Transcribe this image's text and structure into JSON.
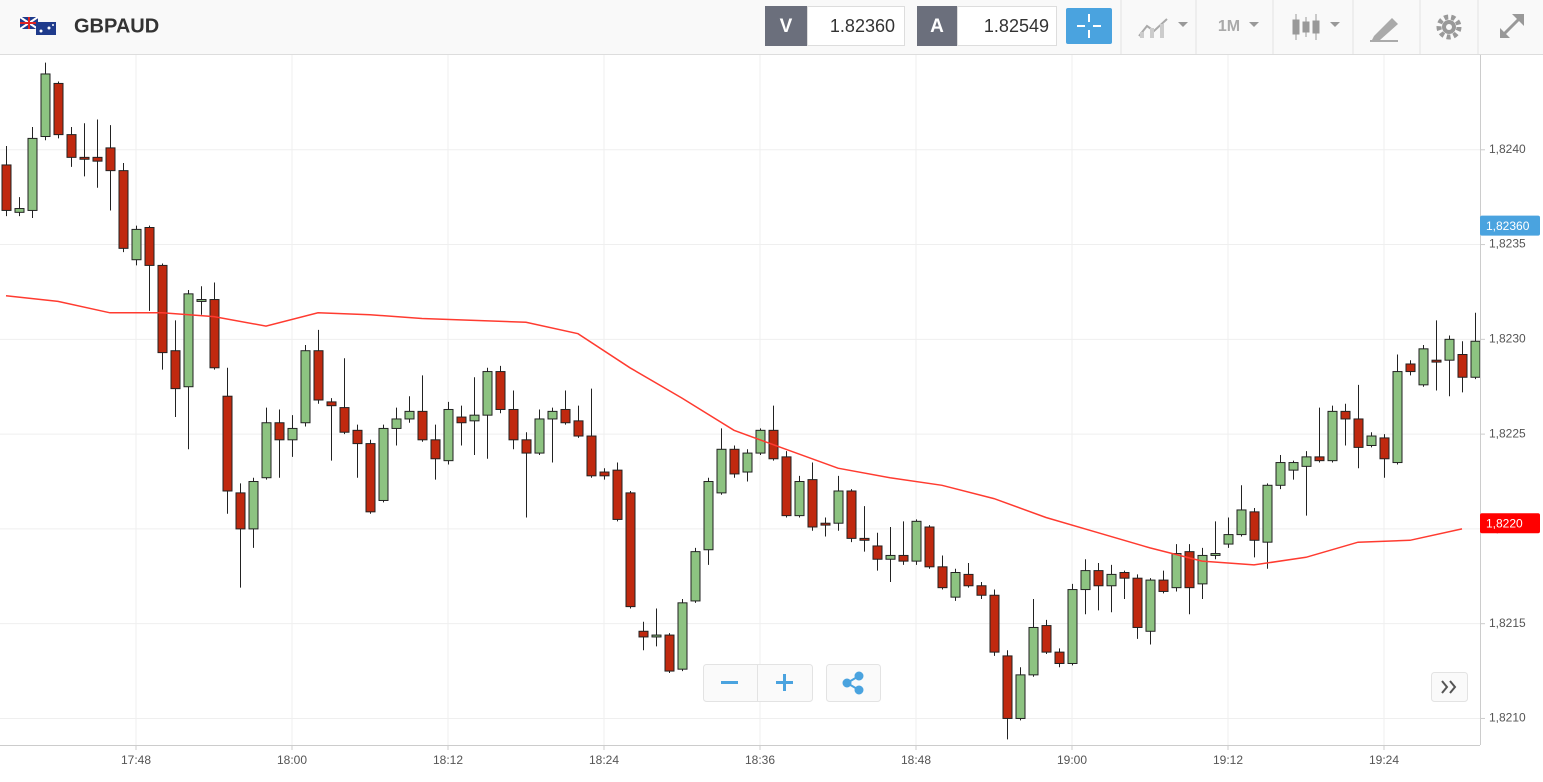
{
  "header": {
    "symbol": "GBPAUD",
    "bid_label": "V",
    "bid": "1.82360",
    "ask_label": "A",
    "ask": "1.82549",
    "timeframe": "1M"
  },
  "chart_data": {
    "type": "candlestick",
    "up_color": "#8dc381",
    "down_color": "#c0290f",
    "grid": true,
    "x": [
      "17:38",
      "17:39",
      "17:40",
      "17:41",
      "17:42",
      "17:43",
      "17:44",
      "17:45",
      "17:46",
      "17:47",
      "17:48",
      "17:49",
      "17:50",
      "17:51",
      "17:52",
      "17:53",
      "17:54",
      "17:55",
      "17:56",
      "17:57",
      "17:58",
      "17:59",
      "18:00",
      "18:01",
      "18:02",
      "18:03",
      "18:04",
      "18:05",
      "18:06",
      "18:07",
      "18:08",
      "18:09",
      "18:10",
      "18:11",
      "18:12",
      "18:13",
      "18:14",
      "18:15",
      "18:16",
      "18:17",
      "18:18",
      "18:19",
      "18:20",
      "18:21",
      "18:22",
      "18:23",
      "18:24",
      "18:25",
      "18:26",
      "18:27",
      "18:28",
      "18:29",
      "18:30",
      "18:31",
      "18:32",
      "18:33",
      "18:34",
      "18:35",
      "18:36",
      "18:37",
      "18:38",
      "18:39",
      "18:40",
      "18:41",
      "18:42",
      "18:43",
      "18:44",
      "18:45",
      "18:46",
      "18:47",
      "18:48",
      "18:49",
      "18:50",
      "18:51",
      "18:52",
      "18:53",
      "18:54",
      "18:55",
      "18:56",
      "18:57",
      "18:58",
      "18:59",
      "19:00",
      "19:01",
      "19:02",
      "19:03",
      "19:04",
      "19:05",
      "19:06",
      "19:07",
      "19:08",
      "19:09",
      "19:10",
      "19:11",
      "19:12",
      "19:13",
      "19:14",
      "19:15",
      "19:16",
      "19:17",
      "19:18",
      "19:19",
      "19:20",
      "19:21",
      "19:22",
      "19:23",
      "19:24",
      "19:25",
      "19:26",
      "19:27",
      "19:28",
      "19:29",
      "19:30",
      "19:31"
    ],
    "open": [
      1.82392,
      1.82367,
      1.82368,
      1.82407,
      1.82435,
      1.82408,
      1.82396,
      1.82396,
      1.82401,
      1.82389,
      1.82342,
      1.82359,
      1.82339,
      1.82294,
      1.82275,
      1.8232,
      1.82321,
      1.8227,
      1.82219,
      1.822,
      1.82227,
      1.82256,
      1.82247,
      1.82256,
      1.82294,
      1.82267,
      1.82264,
      1.82252,
      1.82245,
      1.82215,
      1.82253,
      1.82258,
      1.82262,
      1.82247,
      1.82236,
      1.82259,
      1.82257,
      1.8226,
      1.82283,
      1.82263,
      1.82247,
      1.8224,
      1.82258,
      1.82263,
      1.82257,
      1.82249,
      1.8223,
      1.82231,
      1.82219,
      1.82146,
      1.82143,
      1.82144,
      1.82126,
      1.82162,
      1.82189,
      1.82219,
      1.82242,
      1.8223,
      1.8224,
      1.82252,
      1.82238,
      1.82207,
      1.82226,
      1.82203,
      1.82203,
      1.8222,
      1.82195,
      1.82191,
      1.82184,
      1.82186,
      1.82183,
      1.82201,
      1.8218,
      1.82164,
      1.82176,
      1.8217,
      1.82165,
      1.82133,
      1.821,
      1.82123,
      1.82149,
      1.82135,
      1.82129,
      1.82168,
      1.82178,
      1.8217,
      1.82177,
      1.82174,
      1.82146,
      1.82173,
      1.82169,
      1.82188,
      1.82171,
      1.82186,
      1.82192,
      1.82197,
      1.82209,
      1.82193,
      1.82223,
      1.82231,
      1.82233,
      1.82238,
      1.82236,
      1.82262,
      1.82258,
      1.82244,
      1.82248,
      1.82235,
      1.82287,
      1.82276,
      1.82289,
      1.82289,
      1.82292,
      1.8228
    ],
    "high": [
      1.82402,
      1.82375,
      1.82412,
      1.82446,
      1.82436,
      1.82412,
      1.82414,
      1.82416,
      1.82413,
      1.82393,
      1.8236,
      1.8236,
      1.8234,
      1.8231,
      1.82326,
      1.82328,
      1.8233,
      1.82285,
      1.82224,
      1.82227,
      1.82264,
      1.82263,
      1.8226,
      1.82297,
      1.82305,
      1.82269,
      1.8229,
      1.82255,
      1.82247,
      1.82255,
      1.82264,
      1.8227,
      1.82281,
      1.82255,
      1.82267,
      1.82265,
      1.8228,
      1.82285,
      1.82286,
      1.82273,
      1.82251,
      1.82263,
      1.82264,
      1.82273,
      1.82265,
      1.82274,
      1.82232,
      1.82235,
      1.8222,
      1.82151,
      1.82158,
      1.82145,
      1.82163,
      1.8219,
      1.82227,
      1.82253,
      1.82244,
      1.82242,
      1.82253,
      1.82265,
      1.82241,
      1.82228,
      1.82235,
      1.82206,
      1.82228,
      1.82221,
      1.82212,
      1.82198,
      1.82201,
      1.82204,
      1.82205,
      1.82202,
      1.82186,
      1.82179,
      1.82182,
      1.82172,
      1.82168,
      1.82136,
      1.82127,
      1.82163,
      1.82152,
      1.82137,
      1.82171,
      1.82184,
      1.82182,
      1.82181,
      1.82178,
      1.82176,
      1.82174,
      1.82178,
      1.82192,
      1.82192,
      1.8219,
      1.82204,
      1.82206,
      1.82223,
      1.82211,
      1.82224,
      1.82239,
      1.82236,
      1.82241,
      1.82264,
      1.82265,
      1.82266,
      1.82276,
      1.82251,
      1.8225,
      1.82292,
      1.82289,
      1.82297,
      1.8231,
      1.82302,
      1.82299,
      1.82314
    ],
    "low": [
      1.82365,
      1.82365,
      1.82364,
      1.82405,
      1.82406,
      1.82391,
      1.82386,
      1.8238,
      1.82368,
      1.82346,
      1.82339,
      1.82315,
      1.82284,
      1.82259,
      1.82242,
      1.82313,
      1.82284,
      1.82208,
      1.82169,
      1.8219,
      1.82226,
      1.82227,
      1.82238,
      1.82254,
      1.82266,
      1.82236,
      1.8225,
      1.82227,
      1.82208,
      1.82214,
      1.82244,
      1.82256,
      1.82246,
      1.82226,
      1.82234,
      1.82244,
      1.82239,
      1.82237,
      1.82261,
      1.82242,
      1.82206,
      1.82239,
      1.82235,
      1.82255,
      1.82248,
      1.82227,
      1.82226,
      1.82204,
      1.82158,
      1.82136,
      1.82138,
      1.82124,
      1.82125,
      1.82161,
      1.82181,
      1.82218,
      1.82227,
      1.82225,
      1.82239,
      1.82236,
      1.82206,
      1.82206,
      1.82199,
      1.82196,
      1.82199,
      1.82193,
      1.82188,
      1.82178,
      1.82172,
      1.82181,
      1.82181,
      1.82179,
      1.82168,
      1.82162,
      1.82169,
      1.82163,
      1.82133,
      1.82089,
      1.82099,
      1.82122,
      1.82134,
      1.82127,
      1.82128,
      1.82155,
      1.82157,
      1.82156,
      1.82163,
      1.82142,
      1.82139,
      1.82166,
      1.82167,
      1.82155,
      1.82163,
      1.82184,
      1.8219,
      1.82196,
      1.82185,
      1.82179,
      1.82221,
      1.82226,
      1.82207,
      1.82235,
      1.82235,
      1.82244,
      1.82232,
      1.82243,
      1.82227,
      1.82234,
      1.82281,
      1.82275,
      1.82273,
      1.8227,
      1.82272,
      1.82279
    ],
    "close": [
      1.82368,
      1.82369,
      1.82406,
      1.8244,
      1.82408,
      1.82396,
      1.82395,
      1.82394,
      1.82389,
      1.82348,
      1.82358,
      1.82339,
      1.82293,
      1.82274,
      1.82324,
      1.82321,
      1.82285,
      1.8222,
      1.822,
      1.82225,
      1.82256,
      1.82247,
      1.82253,
      1.82294,
      1.82268,
      1.82265,
      1.82251,
      1.82245,
      1.82209,
      1.82253,
      1.82258,
      1.82262,
      1.82247,
      1.82237,
      1.82263,
      1.82256,
      1.8226,
      1.82283,
      1.82263,
      1.82247,
      1.8224,
      1.82258,
      1.82262,
      1.82256,
      1.82249,
      1.82228,
      1.82228,
      1.82205,
      1.82159,
      1.82143,
      1.82144,
      1.82125,
      1.82161,
      1.82188,
      1.82225,
      1.82242,
      1.82229,
      1.8224,
      1.82252,
      1.82237,
      1.82207,
      1.82225,
      1.82201,
      1.82202,
      1.8222,
      1.82195,
      1.82194,
      1.82184,
      1.82186,
      1.82183,
      1.82204,
      1.8218,
      1.82169,
      1.82177,
      1.8217,
      1.82165,
      1.82135,
      1.821,
      1.82123,
      1.82148,
      1.82135,
      1.82129,
      1.82168,
      1.82178,
      1.8217,
      1.82176,
      1.82174,
      1.82148,
      1.82173,
      1.82167,
      1.82187,
      1.82169,
      1.82186,
      1.82187,
      1.82197,
      1.8221,
      1.82194,
      1.82223,
      1.82235,
      1.82235,
      1.82238,
      1.82236,
      1.82262,
      1.82258,
      1.82243,
      1.82249,
      1.82237,
      1.82283,
      1.82283,
      1.82295,
      1.82288,
      1.823,
      1.8228,
      1.82299
    ],
    "ma": {
      "color": "#ff3b30",
      "x": [
        "17:38",
        "17:42",
        "17:46",
        "17:50",
        "17:54",
        "17:58",
        "18:02",
        "18:06",
        "18:10",
        "18:14",
        "18:18",
        "18:22",
        "18:26",
        "18:30",
        "18:34",
        "18:38",
        "18:42",
        "18:46",
        "18:50",
        "18:54",
        "18:58",
        "19:02",
        "19:06",
        "19:10",
        "19:14",
        "19:18",
        "19:22",
        "19:26",
        "19:30"
      ],
      "values": [
        1.82323,
        1.8232,
        1.82314,
        1.82314,
        1.82312,
        1.82307,
        1.82314,
        1.82313,
        1.82311,
        1.8231,
        1.82309,
        1.82303,
        1.82285,
        1.82269,
        1.82252,
        1.82242,
        1.82232,
        1.82227,
        1.82223,
        1.82216,
        1.82206,
        1.82198,
        1.8219,
        1.82183,
        1.82181,
        1.82185,
        1.82193,
        1.82194,
        1.822
      ]
    },
    "xlim": [
      "17:37",
      "19:32"
    ],
    "ylim": [
      1.82086,
      1.8245
    ],
    "xticks": [
      "17:48",
      "18:00",
      "18:12",
      "18:24",
      "18:36",
      "18:48",
      "19:00",
      "19:12",
      "19:24"
    ],
    "yticks": [
      {
        "value": 1.821,
        "label": "1,8210"
      },
      {
        "value": 1.8215,
        "label": "1,8215"
      },
      {
        "value": 1.822,
        "label": "1,8220"
      },
      {
        "value": 1.8225,
        "label": "1,8225"
      },
      {
        "value": 1.823,
        "label": "1,8230"
      },
      {
        "value": 1.8235,
        "label": "1,8235"
      },
      {
        "value": 1.824,
        "label": "1,8240"
      }
    ],
    "price_tags": [
      {
        "value": 1.8236,
        "label": "1,82360",
        "color": "#4aa3df"
      },
      {
        "value": 1.82203,
        "label": "1,8220",
        "color": "#ff0000"
      }
    ]
  }
}
